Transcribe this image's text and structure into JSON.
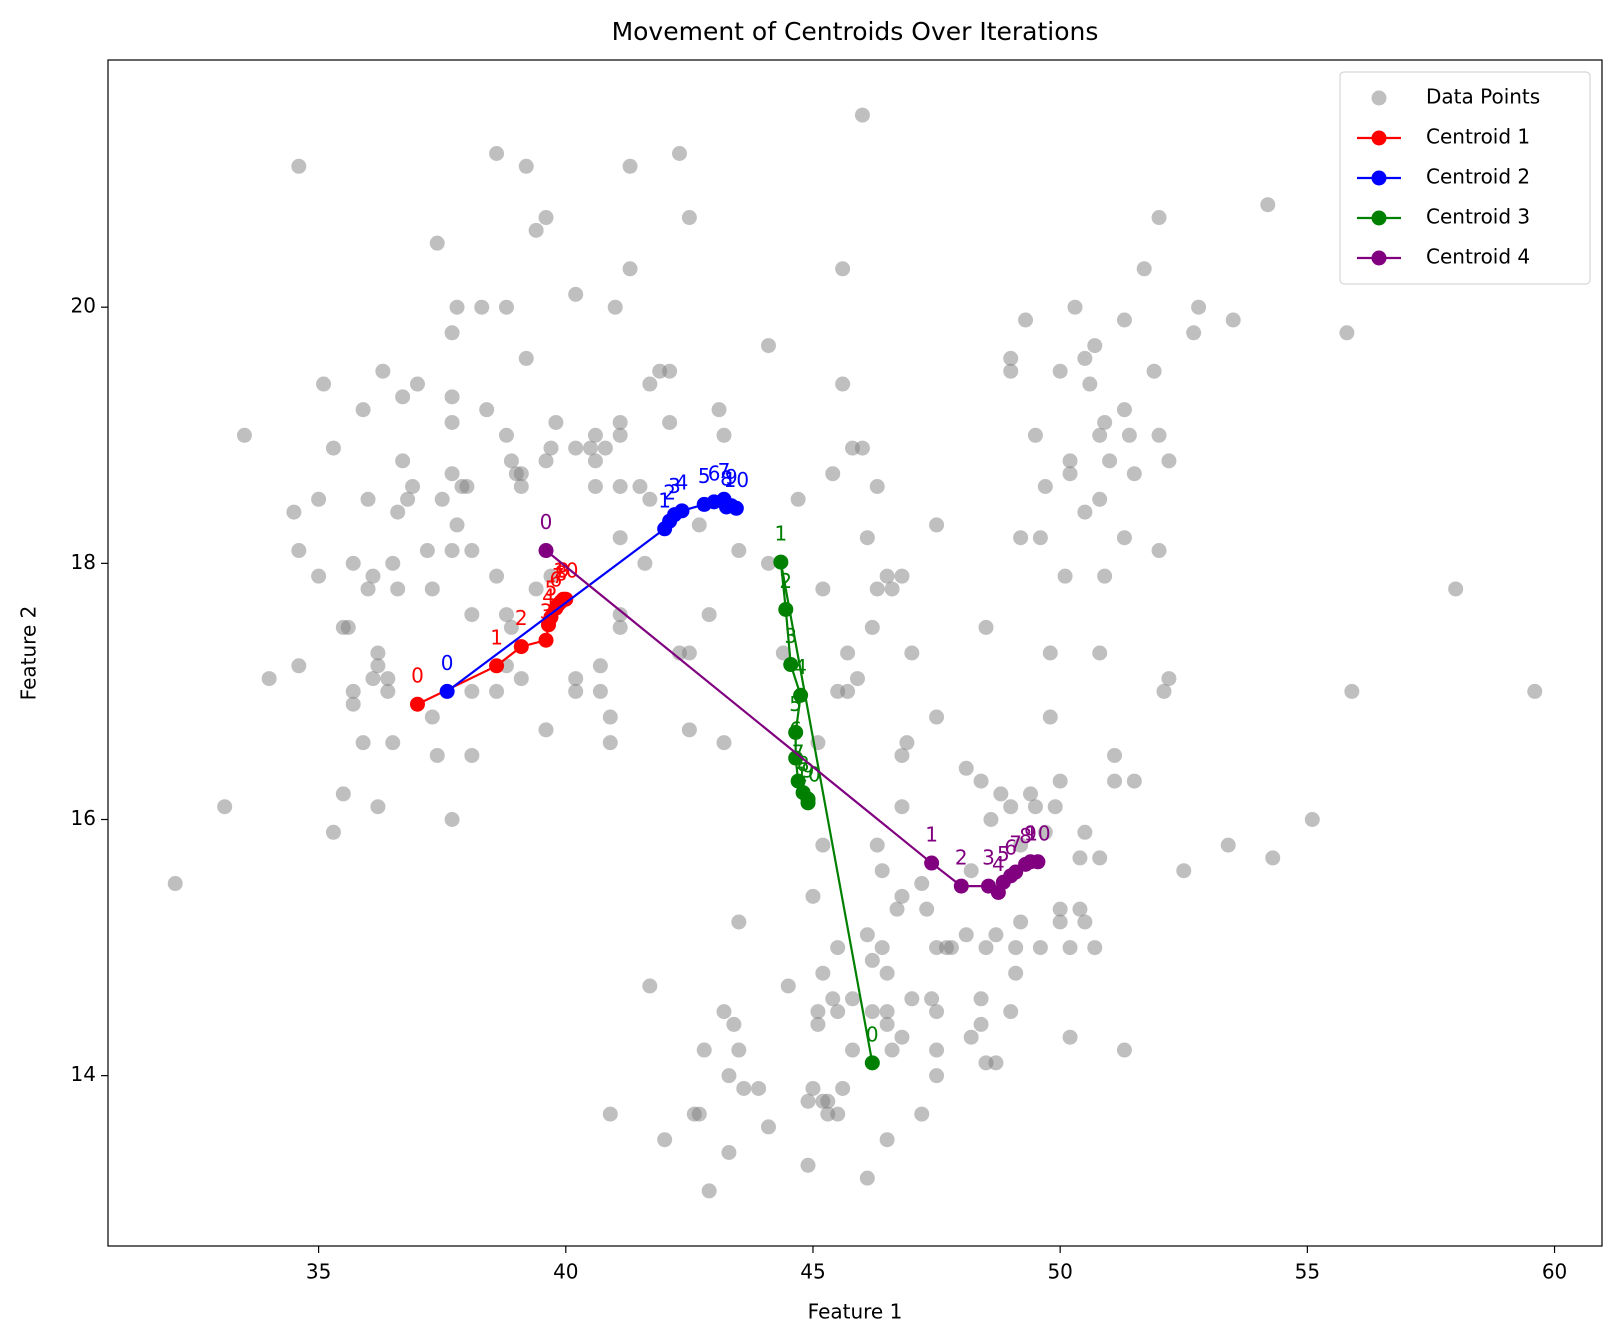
{
  "chart_data": {
    "type": "scatter",
    "title": "Movement of Centroids Over Iterations",
    "x_label": "Feature 1",
    "y_label": "Feature 2",
    "xlim": [
      30.74,
      60.96
    ],
    "ylim": [
      12.67,
      21.93
    ],
    "xticks": [
      35,
      40,
      45,
      50,
      55,
      60
    ],
    "yticks": [
      14,
      16,
      18,
      20
    ],
    "legend": "upper right",
    "series": [
      {
        "name": "Data Points",
        "color": "gray",
        "kind": "points",
        "x": [
          46.0,
          34.6,
          38.6,
          39.2,
          41.3,
          42.3,
          37.4,
          39.4,
          39.6,
          42.5,
          54.2,
          52.0,
          45.6,
          41.3,
          51.7,
          37.7,
          37.8,
          38.3,
          38.8,
          40.2,
          41.0,
          50.3,
          52.8,
          49.3,
          51.3,
          53.5,
          52.7,
          55.8,
          39.2,
          44.1,
          49.0,
          50.0,
          50.7,
          50.5,
          51.9,
          49.0,
          35.1,
          36.3,
          37.0,
          37.7,
          36.7,
          41.9,
          42.1,
          41.7,
          45.6,
          50.6,
          33.5,
          35.9,
          37.7,
          38.4,
          38.8,
          39.8,
          41.1,
          42.1,
          43.1,
          50.9,
          51.3,
          35.3,
          39.7,
          40.2,
          40.5,
          40.6,
          40.8,
          41.1,
          43.2,
          45.8,
          46.0,
          49.5,
          50.8,
          51.0,
          51.4,
          52.0,
          52.2,
          50.2,
          36.7,
          38.9,
          39.0,
          39.1,
          40.6,
          39.6,
          45.4,
          51.5,
          50.2,
          37.7,
          34.5,
          35.0,
          36.0,
          36.9,
          36.8,
          36.6,
          37.9,
          38.0,
          39.1,
          40.6,
          41.1,
          41.5,
          41.7,
          44.7,
          46.3,
          49.7,
          50.8,
          50.5,
          37.5,
          34.6,
          37.2,
          37.8,
          37.7,
          38.1,
          41.1,
          42.7,
          43.5,
          46.1,
          47.5,
          49.2,
          49.6,
          51.3,
          52.0,
          35.0,
          35.7,
          36.1,
          36.5,
          36.0,
          36.6,
          37.3,
          38.6,
          39.4,
          39.7,
          41.6,
          44.1,
          45.2,
          46.5,
          46.8,
          46.3,
          46.6,
          50.1,
          50.9,
          58.0,
          35.5,
          35.6,
          38.1,
          38.8,
          38.9,
          41.1,
          41.1,
          42.9,
          44.4,
          46.2,
          48.5,
          42.3,
          42.5,
          45.7,
          47.0,
          49.8,
          50.8,
          34.0,
          34.6,
          36.1,
          36.2,
          36.2,
          36.4,
          38.8,
          39.1,
          40.2,
          40.7,
          45.9,
          52.2,
          52.1,
          55.9,
          59.6,
          35.7,
          35.7,
          36.4,
          37.3,
          38.1,
          38.6,
          40.2,
          40.7,
          40.9,
          45.5,
          45.7,
          47.5,
          49.8,
          35.9,
          36.5,
          37.4,
          38.1,
          39.6,
          40.9,
          42.5,
          43.2,
          45.1,
          46.9,
          46.8,
          51.1,
          35.5,
          36.2,
          33.1,
          35.3,
          37.7,
          32.1,
          46.8,
          48.1,
          48.4,
          48.8,
          49.0,
          49.4,
          49.5,
          49.9,
          50.0,
          51.1,
          51.5,
          49.7,
          50.5,
          55.1,
          48.6,
          45.2,
          46.3,
          46.4,
          48.2,
          49.2,
          50.4,
          50.8,
          52.5,
          53.4,
          54.3,
          45.0,
          46.8,
          47.2,
          46.7,
          43.5,
          47.3,
          50.0,
          50.4,
          49.2,
          50.0,
          50.5,
          48.1,
          48.7,
          46.1,
          45.5,
          46.4,
          47.5,
          47.7,
          47.8,
          48.5,
          49.1,
          49.6,
          50.2,
          50.7,
          46.2,
          45.2,
          46.5,
          49.1,
          41.7,
          44.5,
          45.4,
          45.8,
          46.2,
          46.5,
          47.0,
          47.4,
          48.4,
          43.2,
          45.1,
          45.1,
          45.5,
          47.5,
          49.0,
          43.4,
          46.5,
          48.4,
          46.8,
          48.2,
          50.2,
          42.8,
          43.5,
          45.8,
          46.6,
          47.5,
          51.3,
          48.5,
          48.7,
          43.3,
          47.5,
          43.6,
          43.9,
          45.0,
          45.6,
          44.9,
          45.2,
          45.3,
          45.3,
          45.5,
          42.6,
          42.7,
          40.9,
          47.2,
          44.1,
          42.0,
          46.5,
          43.3,
          44.9,
          46.1,
          42.9
        ],
        "values": [
          21.5,
          21.1,
          21.2,
          21.1,
          21.1,
          21.2,
          20.5,
          20.6,
          20.7,
          20.7,
          20.8,
          20.7,
          20.3,
          20.3,
          20.3,
          19.8,
          20.0,
          20.0,
          20.0,
          20.1,
          20.0,
          20.0,
          20.0,
          19.9,
          19.9,
          19.9,
          19.8,
          19.8,
          19.6,
          19.7,
          19.6,
          19.5,
          19.7,
          19.6,
          19.5,
          19.5,
          19.4,
          19.5,
          19.4,
          19.3,
          19.3,
          19.5,
          19.5,
          19.4,
          19.4,
          19.4,
          19.0,
          19.2,
          19.1,
          19.2,
          19.0,
          19.1,
          19.1,
          19.1,
          19.2,
          19.1,
          19.2,
          18.9,
          18.9,
          18.9,
          18.9,
          19.0,
          18.9,
          19.0,
          19.0,
          18.9,
          18.9,
          19.0,
          19.0,
          18.8,
          19.0,
          19.0,
          18.8,
          18.8,
          18.8,
          18.8,
          18.7,
          18.7,
          18.8,
          18.8,
          18.7,
          18.7,
          18.7,
          18.7,
          18.4,
          18.5,
          18.5,
          18.6,
          18.5,
          18.4,
          18.6,
          18.6,
          18.6,
          18.6,
          18.6,
          18.6,
          18.5,
          18.5,
          18.6,
          18.6,
          18.5,
          18.4,
          18.5,
          18.1,
          18.1,
          18.3,
          18.1,
          18.1,
          18.2,
          18.3,
          18.1,
          18.2,
          18.3,
          18.2,
          18.2,
          18.2,
          18.1,
          17.9,
          18.0,
          17.9,
          18.0,
          17.8,
          17.8,
          17.8,
          17.9,
          17.8,
          17.9,
          18.0,
          18.0,
          17.8,
          17.9,
          17.9,
          17.8,
          17.8,
          17.9,
          17.9,
          17.8,
          17.5,
          17.5,
          17.6,
          17.6,
          17.5,
          17.6,
          17.5,
          17.6,
          17.3,
          17.5,
          17.5,
          17.3,
          17.3,
          17.3,
          17.3,
          17.3,
          17.3,
          17.1,
          17.2,
          17.1,
          17.3,
          17.2,
          17.1,
          17.2,
          17.1,
          17.1,
          17.2,
          17.1,
          17.1,
          17.0,
          17.0,
          17.0,
          17.0,
          16.9,
          17.0,
          16.8,
          17.0,
          17.0,
          17.0,
          17.0,
          16.8,
          17.0,
          17.0,
          16.8,
          16.8,
          16.6,
          16.6,
          16.5,
          16.5,
          16.7,
          16.6,
          16.7,
          16.6,
          16.6,
          16.6,
          16.5,
          16.5,
          16.2,
          16.1,
          16.1,
          15.9,
          16.0,
          15.5,
          16.1,
          16.4,
          16.3,
          16.2,
          16.1,
          16.2,
          16.1,
          16.1,
          16.3,
          16.3,
          16.3,
          15.9,
          15.9,
          16.0,
          16.0,
          15.8,
          15.8,
          15.6,
          15.6,
          15.8,
          15.7,
          15.7,
          15.6,
          15.8,
          15.7,
          15.4,
          15.4,
          15.5,
          15.3,
          15.2,
          15.3,
          15.3,
          15.3,
          15.2,
          15.2,
          15.2,
          15.1,
          15.1,
          15.1,
          15.0,
          15.0,
          15.0,
          15.0,
          15.0,
          15.0,
          15.0,
          15.0,
          15.0,
          15.0,
          14.9,
          14.8,
          14.8,
          14.8,
          14.7,
          14.7,
          14.6,
          14.6,
          14.5,
          14.5,
          14.6,
          14.6,
          14.6,
          14.5,
          14.5,
          14.4,
          14.5,
          14.5,
          14.5,
          14.4,
          14.4,
          14.4,
          14.3,
          14.3,
          14.3,
          14.2,
          14.2,
          14.2,
          14.2,
          14.2,
          14.2,
          14.1,
          14.1,
          14.0,
          14.0,
          13.9,
          13.9,
          13.9,
          13.9,
          13.8,
          13.8,
          13.8,
          13.7,
          13.7,
          13.7,
          13.7,
          13.7,
          13.7,
          13.6,
          13.5,
          13.5,
          13.4,
          13.3,
          13.2,
          13.1
        ]
      },
      {
        "name": "Centroid 1",
        "color": "red",
        "kind": "path",
        "point_labels": [
          0,
          1,
          2,
          3,
          4,
          5,
          6,
          7,
          8,
          9,
          10
        ],
        "x": [
          37.0,
          38.6,
          39.1,
          39.6,
          39.65,
          39.7,
          39.8,
          39.85,
          39.9,
          39.95,
          40.0
        ],
        "values": [
          16.9,
          17.2,
          17.35,
          17.4,
          17.52,
          17.58,
          17.65,
          17.68,
          17.7,
          17.72,
          17.72
        ]
      },
      {
        "name": "Centroid 2",
        "color": "blue",
        "kind": "path",
        "point_labels": [
          0,
          1,
          2,
          3,
          4,
          5,
          6,
          7,
          8,
          9,
          10
        ],
        "x": [
          37.6,
          42.0,
          42.1,
          42.2,
          42.35,
          42.8,
          43.0,
          43.2,
          43.25,
          43.35,
          43.45
        ],
        "values": [
          17.0,
          18.27,
          18.33,
          18.38,
          18.41,
          18.46,
          18.48,
          18.5,
          18.44,
          18.45,
          18.43
        ]
      },
      {
        "name": "Centroid 3",
        "color": "green",
        "kind": "path",
        "point_labels": [
          0,
          1,
          2,
          3,
          4,
          5,
          6,
          7,
          8,
          9,
          10
        ],
        "x": [
          46.2,
          44.35,
          44.45,
          44.55,
          44.75,
          44.65,
          44.65,
          44.7,
          44.8,
          44.9,
          44.9
        ],
        "values": [
          14.1,
          18.01,
          17.64,
          17.21,
          16.97,
          16.68,
          16.48,
          16.3,
          16.21,
          16.16,
          16.13
        ]
      },
      {
        "name": "Centroid 4",
        "color": "purple",
        "kind": "path",
        "point_labels": [
          0,
          1,
          2,
          3,
          4,
          5,
          6,
          7,
          8,
          9,
          10
        ],
        "x": [
          39.6,
          47.4,
          48.0,
          48.55,
          48.75,
          48.85,
          49.0,
          49.1,
          49.3,
          49.4,
          49.55
        ],
        "values": [
          18.1,
          15.66,
          15.48,
          15.48,
          15.43,
          15.51,
          15.56,
          15.59,
          15.65,
          15.67,
          15.67
        ]
      }
    ]
  }
}
